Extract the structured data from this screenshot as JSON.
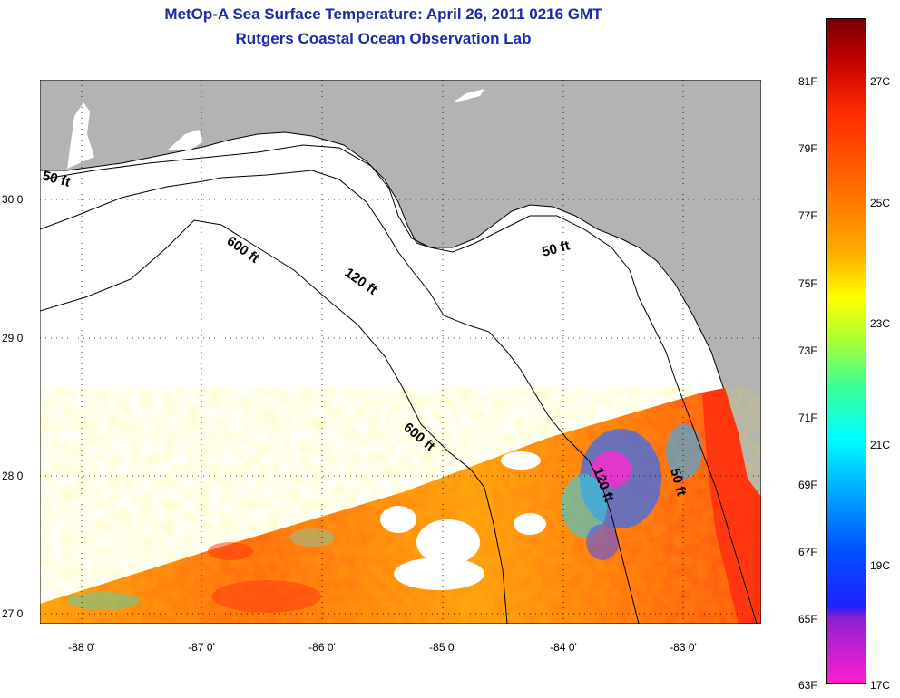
{
  "header": {
    "title": "MetOp-A Sea Surface Temperature:  April 26, 2011 0216 GMT",
    "subtitle": "Rutgers Coastal Ocean Observation Lab"
  },
  "map": {
    "lat_ticks": [
      "30 0'",
      "29 0'",
      "28 0'",
      "27 0'"
    ],
    "lon_ticks": [
      "-88 0'",
      "-87 0'",
      "-86 0'",
      "-85 0'",
      "-84 0'",
      "-83 0'"
    ],
    "contour_labels": [
      "50 ft",
      "600 ft",
      "120 ft",
      "50 ft",
      "600 ft",
      "120 ft",
      "50 ft"
    ],
    "colors": {
      "land": "#b3b3b3",
      "ocean_nodata": "#ffffff",
      "contour": "#000000"
    }
  },
  "colorbar": {
    "fahrenheit": [
      "81F",
      "79F",
      "77F",
      "75F",
      "73F",
      "71F",
      "69F",
      "67F",
      "65F",
      "63F"
    ],
    "celsius": [
      "27C",
      "25C",
      "23C",
      "21C",
      "19C",
      "17C"
    ]
  }
}
